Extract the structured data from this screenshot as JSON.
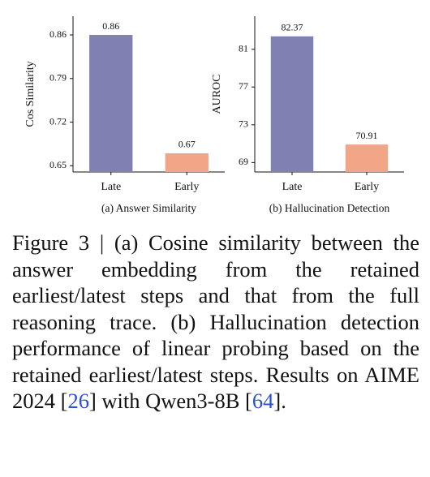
{
  "chart_data": [
    {
      "type": "bar",
      "title": "(a) Answer Similarity",
      "ylabel": "Cos Similarity",
      "categories": [
        "Late",
        "Early"
      ],
      "values": [
        0.86,
        0.67
      ],
      "colors": [
        "#8080b2",
        "#f1a687"
      ],
      "ylim": [
        0.64,
        0.89
      ],
      "yticks": [
        0.65,
        0.72,
        0.79,
        0.86
      ]
    },
    {
      "type": "bar",
      "title": "(b) Hallucination Detection",
      "ylabel": "AUROC",
      "categories": [
        "Late",
        "Early"
      ],
      "values": [
        82.37,
        70.91
      ],
      "colors": [
        "#8080b2",
        "#f1a687"
      ],
      "ylim": [
        68,
        84.5
      ],
      "yticks": [
        69,
        73,
        77,
        81
      ]
    }
  ],
  "caption": [
    "Figure 3 | (a) Cosine similarity between the answer embedding from the retained earliest/latest steps and that from the full reasoning trace. (b) Hallucination detection performance of linear probing based on the retained earliest/latest steps. Results on AIME 2024 [",
    "26",
    "] with Qwen3-8B [",
    "64",
    "]."
  ]
}
